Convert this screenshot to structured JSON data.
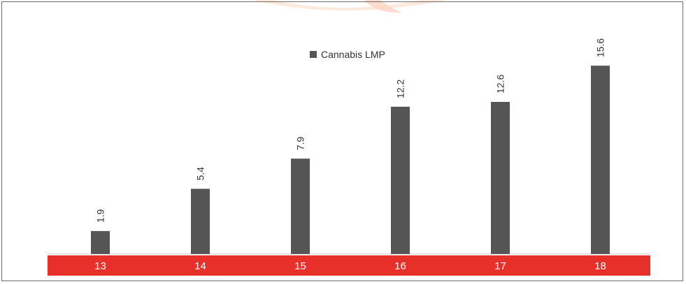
{
  "chart_data": {
    "type": "bar",
    "categories": [
      "13",
      "14",
      "15",
      "16",
      "17",
      "18"
    ],
    "series": [
      {
        "name": "Cannabis LMP",
        "values": [
          1.9,
          5.4,
          7.9,
          12.2,
          12.6,
          15.6
        ]
      }
    ],
    "ylim": [
      0,
      18
    ],
    "grid": false,
    "legend_placement": "top-center",
    "colors": {
      "bar": "#555555",
      "axis_band": "#e8302a",
      "tick_text": "#ffffff",
      "watermark": "#fde3d6"
    }
  }
}
